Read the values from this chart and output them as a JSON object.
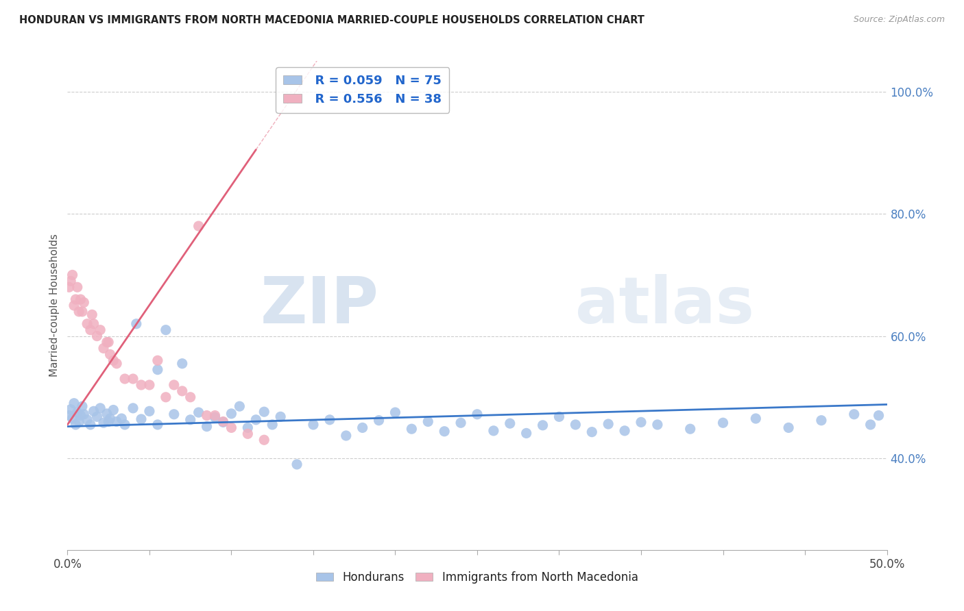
{
  "title": "HONDURAN VS IMMIGRANTS FROM NORTH MACEDONIA MARRIED-COUPLE HOUSEHOLDS CORRELATION CHART",
  "source": "Source: ZipAtlas.com",
  "ylabel": "Married-couple Households",
  "xlim": [
    0.0,
    0.5
  ],
  "ylim": [
    0.25,
    1.05
  ],
  "yticks": [
    0.4,
    0.6,
    0.8,
    1.0
  ],
  "ytick_labels": [
    "40.0%",
    "60.0%",
    "80.0%",
    "100.0%"
  ],
  "watermark": "ZIPatlas",
  "series1_label": "Hondurans",
  "series1_R": "R = 0.059",
  "series1_N": "N = 75",
  "series1_color": "#a8c4e8",
  "series1_line_color": "#3a78c9",
  "series2_label": "Immigrants from North Macedonia",
  "series2_R": "R = 0.556",
  "series2_N": "N = 38",
  "series2_color": "#f0b0c0",
  "series2_line_color": "#e0607a",
  "hon_x": [
    0.001,
    0.002,
    0.003,
    0.004,
    0.005,
    0.006,
    0.007,
    0.008,
    0.009,
    0.01,
    0.012,
    0.014,
    0.016,
    0.018,
    0.02,
    0.022,
    0.024,
    0.026,
    0.028,
    0.03,
    0.035,
    0.04,
    0.045,
    0.05,
    0.055,
    0.06,
    0.065,
    0.07,
    0.075,
    0.08,
    0.085,
    0.09,
    0.095,
    0.1,
    0.105,
    0.11,
    0.115,
    0.12,
    0.125,
    0.13,
    0.14,
    0.15,
    0.16,
    0.17,
    0.18,
    0.19,
    0.2,
    0.21,
    0.22,
    0.23,
    0.24,
    0.25,
    0.26,
    0.27,
    0.28,
    0.29,
    0.3,
    0.31,
    0.32,
    0.33,
    0.34,
    0.35,
    0.36,
    0.38,
    0.4,
    0.42,
    0.44,
    0.46,
    0.48,
    0.49,
    0.495,
    0.025,
    0.033,
    0.042,
    0.055
  ],
  "hon_y": [
    0.47,
    0.48,
    0.465,
    0.49,
    0.455,
    0.475,
    0.46,
    0.47,
    0.485,
    0.472,
    0.463,
    0.455,
    0.477,
    0.468,
    0.482,
    0.458,
    0.473,
    0.465,
    0.479,
    0.46,
    0.455,
    0.482,
    0.464,
    0.477,
    0.455,
    0.61,
    0.472,
    0.555,
    0.463,
    0.475,
    0.452,
    0.467,
    0.459,
    0.473,
    0.485,
    0.45,
    0.463,
    0.476,
    0.455,
    0.468,
    0.39,
    0.455,
    0.463,
    0.437,
    0.45,
    0.462,
    0.475,
    0.448,
    0.46,
    0.444,
    0.458,
    0.472,
    0.445,
    0.457,
    0.441,
    0.454,
    0.468,
    0.455,
    0.443,
    0.456,
    0.445,
    0.459,
    0.455,
    0.448,
    0.458,
    0.465,
    0.45,
    0.462,
    0.472,
    0.455,
    0.47,
    0.46,
    0.465,
    0.62,
    0.545
  ],
  "mac_x": [
    0.001,
    0.002,
    0.003,
    0.004,
    0.005,
    0.006,
    0.007,
    0.008,
    0.009,
    0.01,
    0.012,
    0.014,
    0.016,
    0.018,
    0.02,
    0.022,
    0.024,
    0.026,
    0.028,
    0.03,
    0.035,
    0.04,
    0.045,
    0.05,
    0.055,
    0.06,
    0.065,
    0.07,
    0.075,
    0.08,
    0.085,
    0.09,
    0.095,
    0.1,
    0.11,
    0.12,
    0.025,
    0.015
  ],
  "mac_y": [
    0.68,
    0.69,
    0.7,
    0.65,
    0.66,
    0.68,
    0.64,
    0.66,
    0.64,
    0.655,
    0.62,
    0.61,
    0.62,
    0.6,
    0.61,
    0.58,
    0.59,
    0.57,
    0.56,
    0.555,
    0.53,
    0.53,
    0.52,
    0.52,
    0.56,
    0.5,
    0.52,
    0.51,
    0.5,
    0.78,
    0.47,
    0.47,
    0.46,
    0.45,
    0.44,
    0.43,
    0.59,
    0.635
  ],
  "hon_line_x": [
    0.0,
    0.5
  ],
  "hon_line_y": [
    0.452,
    0.488
  ],
  "mac_line_x": [
    0.0,
    0.115
  ],
  "mac_line_y": [
    0.455,
    0.905
  ]
}
